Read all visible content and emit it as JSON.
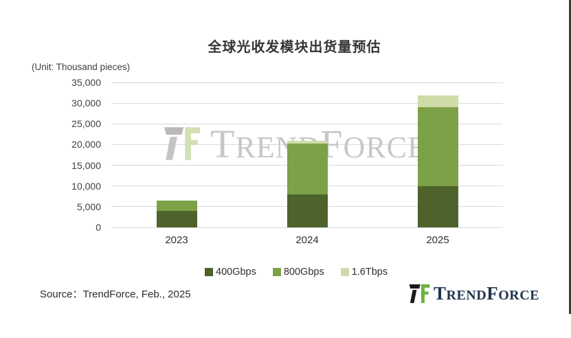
{
  "title": "全球光收发模块出货量预估",
  "unit_label": "(Unit: Thousand pieces)",
  "source_text": "Source：TrendForce, Feb., 2025",
  "watermark": {
    "t": "T",
    "rend": "REND",
    "f": "F",
    "orce": "ORCE"
  },
  "footer_logo": {
    "t": "T",
    "rend": "REND",
    "f": "F",
    "orce": "ORCE"
  },
  "colors": {
    "series_400g": "#4e632c",
    "series_800g": "#7da147",
    "series_1_6t": "#cfdca8",
    "gridline": "#d9d9d9",
    "logo_navy": "#21364e",
    "logo_green": "#6db33f",
    "logo_black": "#1a1a1a",
    "watermark_gray": "#c7c7c7"
  },
  "chart_data": {
    "type": "bar",
    "stacked": true,
    "title": "全球光收发模块出货量预估",
    "ylabel": "(Unit: Thousand pieces)",
    "categories": [
      "2023",
      "2024",
      "2025"
    ],
    "series": [
      {
        "name": "400Gbps",
        "color": "#4e632c",
        "values": [
          4000,
          8000,
          10000
        ]
      },
      {
        "name": "800Gbps",
        "color": "#7da147",
        "values": [
          2400,
          12250,
          19100
        ]
      },
      {
        "name": "1.6Tbps",
        "color": "#cfdca8",
        "values": [
          0,
          650,
          2800
        ]
      }
    ],
    "totals": [
      6400,
      20900,
      31900
    ],
    "ylim": [
      0,
      35000
    ],
    "ytick_interval": 5000,
    "grid": true,
    "legend_position": "bottom"
  }
}
